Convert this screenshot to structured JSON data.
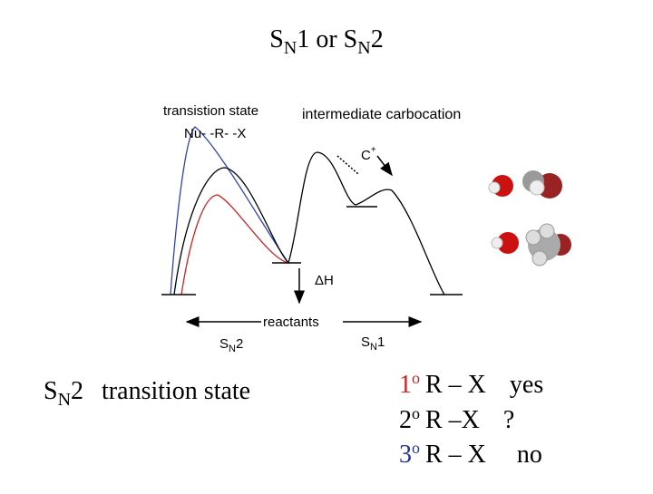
{
  "title": {
    "s1": "S",
    "n1": "N",
    "mid": "1 or S",
    "n2": "N",
    "end": "2"
  },
  "diagram": {
    "transition_state": "transistion state",
    "nu_r_x": "Nu- -R- -X",
    "intermediate": "intermediate carbocation",
    "carbon": "C",
    "plus": "+",
    "delta_h": "ΔH",
    "reactants": "reactants",
    "sn2": {
      "s": "S",
      "n": "N",
      "num": "2"
    },
    "sn1": {
      "s": "S",
      "n": "N",
      "num": "1"
    }
  },
  "caption": {
    "s": "S",
    "n": "N",
    "num": "2",
    "text": "transition state"
  },
  "list": [
    {
      "degree": "1",
      "sup": "o",
      "formula": "R – X",
      "answer": "yes"
    },
    {
      "degree": "2",
      "sup": "o",
      "formula": "R –X",
      "answer": "?"
    },
    {
      "degree": "3",
      "sup": "o",
      "formula": "R – X",
      "answer": "no"
    }
  ]
}
